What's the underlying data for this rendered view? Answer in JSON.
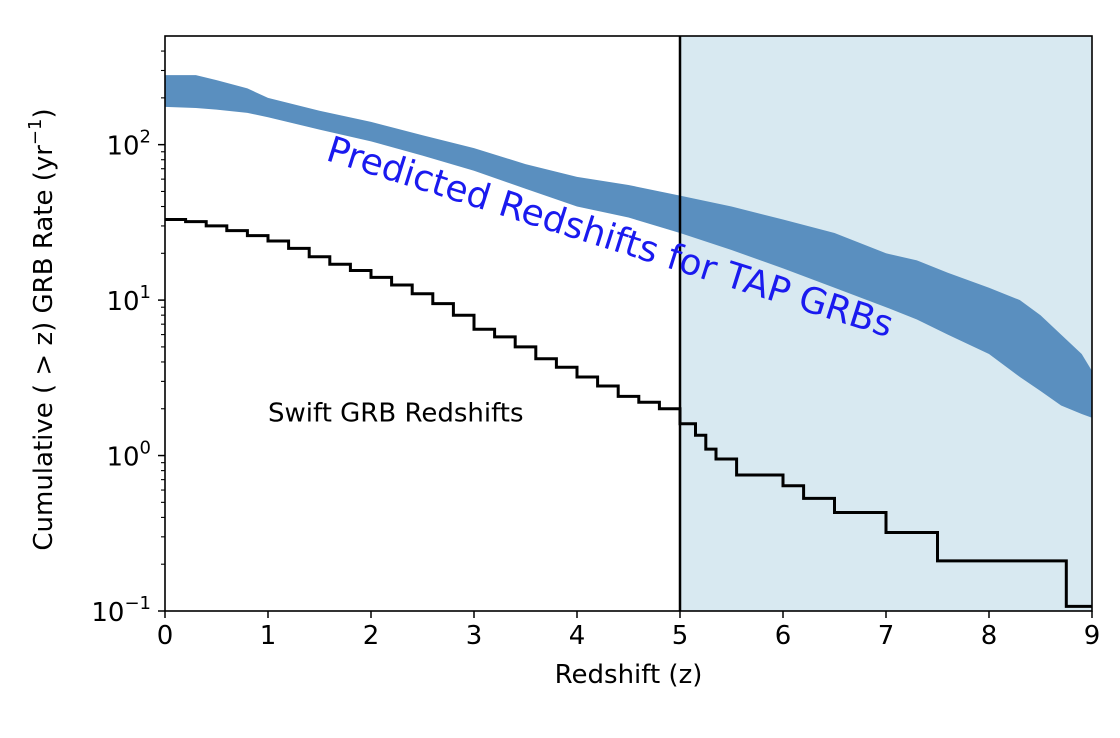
{
  "chart_data": {
    "type": "area",
    "xlabel": "Redshift (z)",
    "ylabel_main": "Cumulative ( > z) GRB Rate (yr",
    "ylabel_sup": "−1",
    "ylabel_end": ")",
    "xlim": [
      0,
      9
    ],
    "ylim": [
      0.1,
      500
    ],
    "yscale": "log",
    "grid": false,
    "x_ticks": [
      0,
      1,
      2,
      3,
      4,
      5,
      6,
      7,
      8,
      9
    ],
    "x_tick_labels": [
      "0",
      "1",
      "2",
      "3",
      "4",
      "5",
      "6",
      "7",
      "8",
      "9"
    ],
    "y_ticks": [
      0.1,
      1,
      10,
      100
    ],
    "y_tick_labels": [
      {
        "base": "10",
        "exp": "−1"
      },
      {
        "base": "10",
        "exp": "0"
      },
      {
        "base": "10",
        "exp": "1"
      },
      {
        "base": "10",
        "exp": "2"
      }
    ],
    "vline_x": 5,
    "shaded_region": {
      "x_start": 5,
      "x_end": 9,
      "color": "#d8e9f1"
    },
    "colors": {
      "band": "#5a8fbf",
      "step": "#000000",
      "annotation_predicted": "#1a1aef",
      "annotation_swift": "#000000"
    },
    "series": [
      {
        "kind": "band",
        "x": [
          0,
          0.3,
          0.5,
          0.8,
          1.0,
          1.5,
          2.0,
          2.5,
          3.0,
          3.5,
          4.0,
          4.5,
          5.0,
          5.5,
          6.0,
          6.5,
          7.0,
          7.3,
          7.6,
          8.0,
          8.3,
          8.5,
          8.7,
          8.9,
          9.0
        ],
        "y_upper": [
          280,
          280,
          260,
          230,
          200,
          165,
          140,
          115,
          95,
          75,
          62,
          55,
          47,
          40,
          33,
          27,
          20,
          18,
          15,
          12,
          10,
          8,
          6,
          4.5,
          3.5
        ],
        "y_lower": [
          175,
          172,
          168,
          160,
          150,
          125,
          105,
          85,
          68,
          52,
          40,
          34,
          27,
          21,
          16,
          12,
          9,
          7.5,
          6,
          4.5,
          3.2,
          2.6,
          2.1,
          1.85,
          1.75
        ]
      },
      {
        "kind": "step",
        "x": [
          0,
          0.2,
          0.4,
          0.6,
          0.8,
          1.0,
          1.2,
          1.4,
          1.6,
          1.8,
          2.0,
          2.2,
          2.4,
          2.6,
          2.8,
          3.0,
          3.2,
          3.4,
          3.6,
          3.8,
          4.0,
          4.2,
          4.4,
          4.6,
          4.8,
          5.0,
          5.15,
          5.25,
          5.35,
          5.55,
          5.7,
          6.0,
          6.2,
          6.5,
          7.0,
          7.5,
          8.0,
          8.75,
          9.0
        ],
        "y": [
          33,
          32,
          30,
          28,
          26,
          24,
          21.5,
          19,
          17,
          15.5,
          14,
          12.5,
          11,
          9.5,
          8,
          6.5,
          5.8,
          5.0,
          4.2,
          3.7,
          3.2,
          2.8,
          2.4,
          2.2,
          2.0,
          1.6,
          1.35,
          1.1,
          0.95,
          0.75,
          0.75,
          0.64,
          0.53,
          0.43,
          0.32,
          0.21,
          0.21,
          0.107,
          0.107
        ]
      }
    ],
    "annotations": [
      {
        "text": "Predicted Redshifts for TAP GRBs",
        "x": 1.55,
        "y": 80,
        "rotation": 17.5,
        "color": "#1a1aef"
      },
      {
        "text": "Swift GRB Redshifts",
        "x": 1.0,
        "y": 1.65,
        "rotation": 0,
        "color": "#000000"
      }
    ]
  }
}
